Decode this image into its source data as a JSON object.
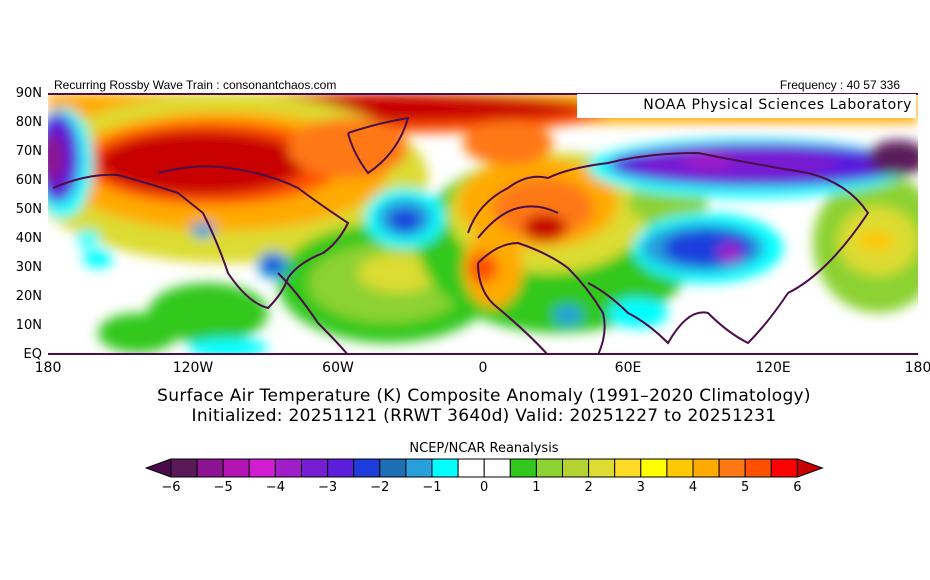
{
  "header": {
    "left_label": "Recurring Rossby Wave Train : consonantchaos.com",
    "right_label": "Frequency : 40 57 336",
    "credit": "NOAA Physical Sciences Laboratory"
  },
  "axes": {
    "lat_labels": [
      "90N",
      "80N",
      "70N",
      "60N",
      "50N",
      "40N",
      "30N",
      "20N",
      "10N",
      "EQ"
    ],
    "lon_labels": [
      "180",
      "120W",
      "60W",
      "0",
      "60E",
      "120E",
      "180"
    ]
  },
  "title": {
    "line1": "Surface Air Temperature (K) Composite Anomaly (1991–2020 Climatology)",
    "line2": "Initialized: 20251121 (RRWT 3640d) Valid: 20251227 to 20251231"
  },
  "colorbar": {
    "title": "NCEP/NCAR Reanalysis",
    "labels": [
      "−6",
      "−5",
      "−4",
      "−3",
      "−2",
      "−1",
      "0",
      "1",
      "2",
      "3",
      "4",
      "5",
      "6"
    ],
    "colors": [
      "#5a1a5a",
      "#8c1490",
      "#b414b4",
      "#d21ed2",
      "#a01ec8",
      "#781ed2",
      "#5a1edc",
      "#1e3cdc",
      "#1e6eb4",
      "#28a0dc",
      "#00ffff",
      "#ffffff",
      "#ffffff",
      "#32c81e",
      "#8cd232",
      "#b4d232",
      "#dcdc32",
      "#ffdc28",
      "#ffff00",
      "#ffc800",
      "#ffaa00",
      "#ff7814",
      "#ff5000",
      "#ff0000"
    ],
    "low_color": "#4b0a4b",
    "high_color": "#c80000",
    "min": -6,
    "max": 6,
    "step": 0.5
  }
}
